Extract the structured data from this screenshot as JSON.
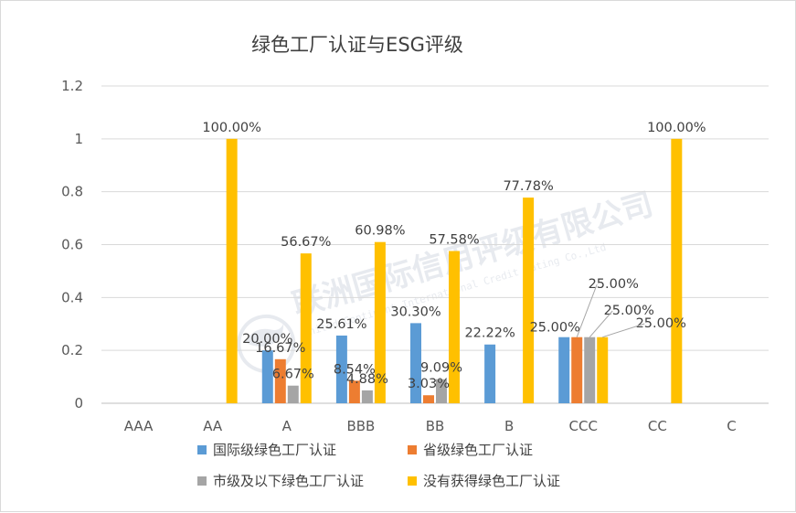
{
  "chart_data": {
    "type": "bar",
    "title": "绿色工厂认证与ESG评级",
    "xlabel": "",
    "ylabel": "",
    "ylim": [
      0,
      1.2
    ],
    "yticks": [
      "0",
      "0.2",
      "0.4",
      "0.6",
      "0.8",
      "1",
      "1.2"
    ],
    "grid": true,
    "legend_position": "bottom",
    "categories": [
      "AAA",
      "AA",
      "A",
      "BBB",
      "BB",
      "B",
      "CCC",
      "CC",
      "C"
    ],
    "series": [
      {
        "name": "国际级绿色工厂认证",
        "color": "#5B9BD5",
        "values": [
          0,
          0,
          0.2,
          0.2561,
          0.303,
          0.2222,
          0.25,
          0,
          0
        ],
        "labels": [
          "",
          "",
          "20.00%",
          "25.61%",
          "30.30%",
          "22.22%",
          "25.00%",
          "",
          ""
        ]
      },
      {
        "name": "省级绿色工厂认证",
        "color": "#ED7D31",
        "values": [
          0,
          0,
          0.1667,
          0.0854,
          0.0303,
          0,
          0.25,
          0,
          0
        ],
        "labels": [
          "",
          "",
          "16.67%",
          "8.54%",
          "3.03%",
          "",
          "25.00%",
          "",
          ""
        ]
      },
      {
        "name": "市级及以下绿色工厂认证",
        "color": "#A5A5A5",
        "values": [
          0,
          0,
          0.0667,
          0.0488,
          0.0909,
          0,
          0.25,
          0,
          0
        ],
        "labels": [
          "",
          "",
          "6.67%",
          "4.88%",
          "9.09%",
          "",
          "25.00%",
          "",
          ""
        ]
      },
      {
        "name": "没有获得绿色工厂认证",
        "color": "#FFC000",
        "values": [
          0,
          1,
          0.5667,
          0.6098,
          0.5758,
          0.7778,
          0.25,
          1,
          0
        ],
        "labels": [
          "",
          "100.00%",
          "56.67%",
          "60.98%",
          "57.58%",
          "77.78%",
          "25.00%",
          "100.00%",
          ""
        ]
      }
    ]
  },
  "watermark": {
    "cn": "联洲国际信用评级有限公司",
    "en": "United Continent International Credit Rating Co.,Ltd"
  }
}
